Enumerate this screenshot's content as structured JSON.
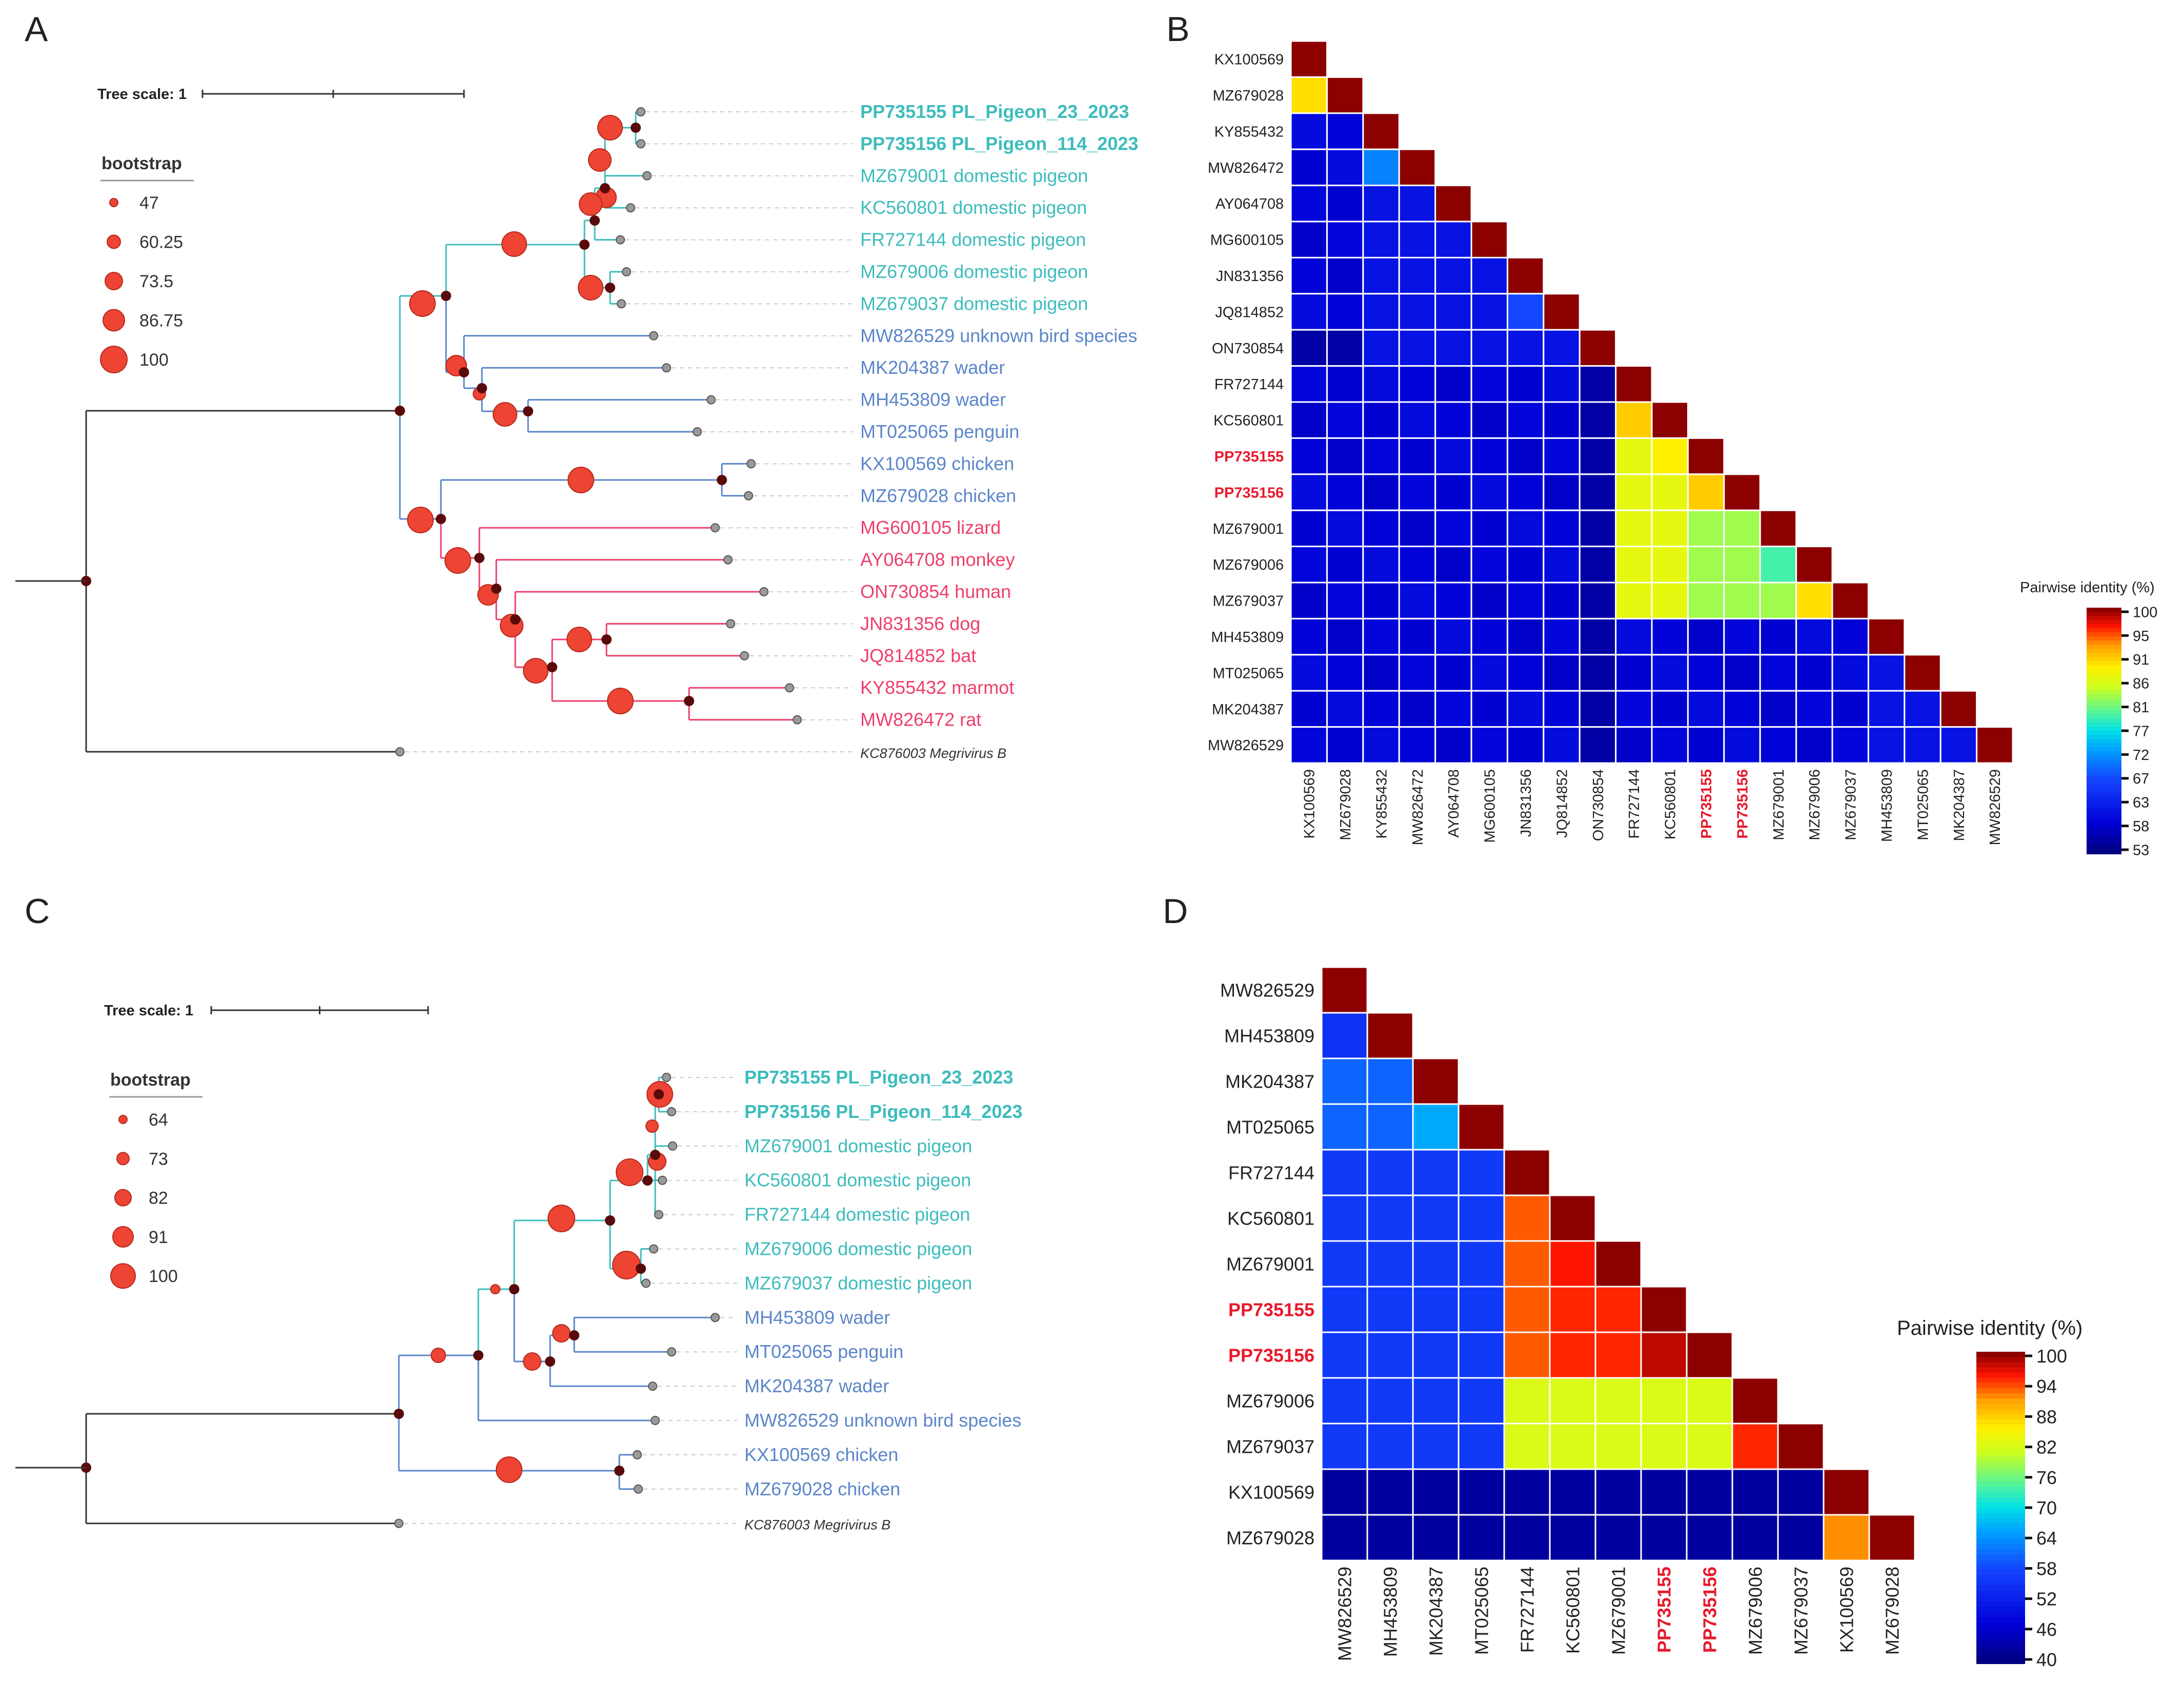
{
  "panels": [
    {
      "letter": "A",
      "tree_scale_label": "Tree scale: 1",
      "legend_title": "bootstrap",
      "legend_values": [
        "47",
        "60.25",
        "73.5",
        "86.75",
        "100"
      ],
      "leaves": [
        {
          "text": "PP735155 PL_Pigeon_23_2023",
          "group": "pigeon",
          "bold": true
        },
        {
          "text": "PP735156 PL_Pigeon_114_2023",
          "group": "pigeon",
          "bold": true
        },
        {
          "text": "MZ679001 domestic pigeon",
          "group": "pigeon"
        },
        {
          "text": "KC560801 domestic pigeon",
          "group": "pigeon"
        },
        {
          "text": "FR727144 domestic pigeon",
          "group": "pigeon"
        },
        {
          "text": "MZ679006 domestic pigeon",
          "group": "pigeon"
        },
        {
          "text": "MZ679037 domestic pigeon",
          "group": "pigeon"
        },
        {
          "text": "MW826529 unknown bird species",
          "group": "bird"
        },
        {
          "text": "MK204387 wader",
          "group": "bird"
        },
        {
          "text": "MH453809 wader",
          "group": "bird"
        },
        {
          "text": "MT025065 penguin",
          "group": "bird"
        },
        {
          "text": "KX100569 chicken",
          "group": "bird"
        },
        {
          "text": "MZ679028 chicken",
          "group": "bird"
        },
        {
          "text": "MG600105 lizard",
          "group": "mammal"
        },
        {
          "text": "AY064708 monkey",
          "group": "mammal"
        },
        {
          "text": "ON730854 human",
          "group": "mammal"
        },
        {
          "text": "JN831356 dog",
          "group": "mammal"
        },
        {
          "text": "JQ814852 bat",
          "group": "mammal"
        },
        {
          "text": "KY855432 marmot",
          "group": "mammal"
        },
        {
          "text": "MW826472 rat",
          "group": "mammal"
        },
        {
          "text": "KC876003 Megrivirus B",
          "group": "outgroup"
        }
      ]
    },
    {
      "letter": "B",
      "scale_title": "Pairwise identity (%)",
      "scale_ticks": [
        "100",
        "95",
        "91",
        "86",
        "81",
        "77",
        "72",
        "67",
        "63",
        "58",
        "53"
      ],
      "labels": [
        "KX100569",
        "MZ679028",
        "KY855432",
        "MW826472",
        "AY064708",
        "MG600105",
        "JN831356",
        "JQ814852",
        "ON730854",
        "FR727144",
        "KC560801",
        "PP735155",
        "PP735156",
        "MZ679001",
        "MZ679006",
        "MZ679037",
        "MH453809",
        "MT025065",
        "MK204387",
        "MW826529"
      ],
      "highlight": [
        "PP735155",
        "PP735156"
      ]
    },
    {
      "letter": "C",
      "tree_scale_label": "Tree scale: 1",
      "legend_title": "bootstrap",
      "legend_values": [
        "64",
        "73",
        "82",
        "91",
        "100"
      ],
      "leaves": [
        {
          "text": "PP735155 PL_Pigeon_23_2023",
          "group": "pigeon",
          "bold": true
        },
        {
          "text": "PP735156 PL_Pigeon_114_2023",
          "group": "pigeon",
          "bold": true
        },
        {
          "text": "MZ679001 domestic pigeon",
          "group": "pigeon"
        },
        {
          "text": "KC560801 domestic pigeon",
          "group": "pigeon"
        },
        {
          "text": "FR727144 domestic pigeon",
          "group": "pigeon"
        },
        {
          "text": "MZ679006 domestic pigeon",
          "group": "pigeon"
        },
        {
          "text": "MZ679037 domestic pigeon",
          "group": "pigeon"
        },
        {
          "text": "MH453809 wader",
          "group": "bird"
        },
        {
          "text": "MT025065 penguin",
          "group": "bird"
        },
        {
          "text": "MK204387 wader",
          "group": "bird"
        },
        {
          "text": "MW826529 unknown bird species",
          "group": "bird"
        },
        {
          "text": "KX100569 chicken",
          "group": "bird"
        },
        {
          "text": "MZ679028 chicken",
          "group": "bird"
        },
        {
          "text": "KC876003 Megrivirus B",
          "group": "outgroup"
        }
      ]
    },
    {
      "letter": "D",
      "scale_title": "Pairwise identity (%)",
      "scale_ticks": [
        "100",
        "94",
        "88",
        "82",
        "76",
        "70",
        "64",
        "58",
        "52",
        "46",
        "40"
      ],
      "labels": [
        "MW826529",
        "MH453809",
        "MK204387",
        "MT025065",
        "FR727144",
        "KC560801",
        "MZ679001",
        "PP735155",
        "PP735156",
        "MZ679006",
        "MZ679037",
        "KX100569",
        "MZ679028"
      ],
      "highlight": [
        "PP735155",
        "PP735156"
      ]
    }
  ],
  "colors": {
    "pigeon": "#3dbcbc",
    "bird": "#5b86c9",
    "mammal": "#ee3f6a",
    "outgroup": "#333333",
    "highlight": "#e8192c",
    "bootstrap": "#ee4433"
  }
}
